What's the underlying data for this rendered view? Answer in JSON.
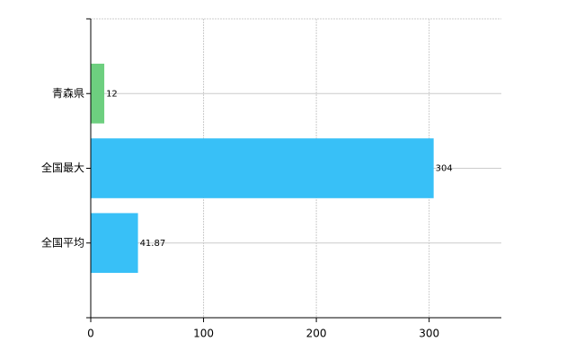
{
  "chart_data": {
    "type": "barh",
    "categories": [
      "青森県",
      "全国最大",
      "全国平均"
    ],
    "values": [
      12,
      304,
      41.87
    ],
    "colors": [
      "#6dcf7f",
      "#38c0f7",
      "#38c0f7"
    ],
    "xlim": [
      0,
      364
    ],
    "xticks": [
      0,
      100,
      200,
      300
    ],
    "grid": true
  }
}
